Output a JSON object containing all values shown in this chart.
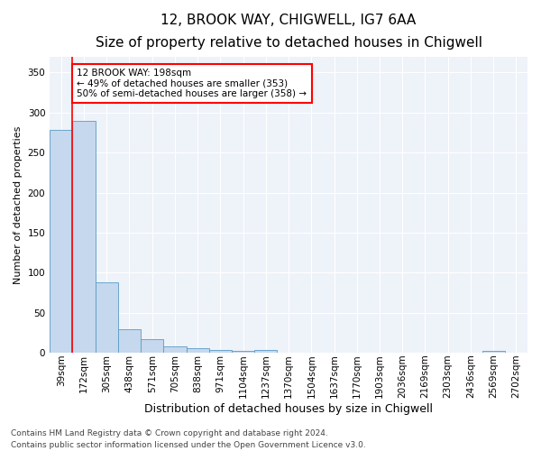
{
  "title1": "12, BROOK WAY, CHIGWELL, IG7 6AA",
  "title2": "Size of property relative to detached houses in Chigwell",
  "xlabel": "Distribution of detached houses by size in Chigwell",
  "ylabel": "Number of detached properties",
  "bin_labels": [
    "39sqm",
    "172sqm",
    "305sqm",
    "438sqm",
    "571sqm",
    "705sqm",
    "838sqm",
    "971sqm",
    "1104sqm",
    "1237sqm",
    "1370sqm",
    "1504sqm",
    "1637sqm",
    "1770sqm",
    "1903sqm",
    "2036sqm",
    "2169sqm",
    "2303sqm",
    "2436sqm",
    "2569sqm",
    "2702sqm"
  ],
  "bar_heights": [
    278,
    290,
    88,
    30,
    17,
    8,
    6,
    4,
    3,
    4,
    0,
    0,
    0,
    0,
    0,
    0,
    0,
    0,
    0,
    3,
    0
  ],
  "bar_color": "#c5d8ed",
  "bar_edge_color": "#5a9cc5",
  "annotation_text_line1": "12 BROOK WAY: 198sqm",
  "annotation_text_line2": "← 49% of detached houses are smaller (353)",
  "annotation_text_line3": "50% of semi-detached houses are larger (358) →",
  "annotation_box_color": "white",
  "annotation_box_edge_color": "red",
  "red_line_color": "red",
  "ylim": [
    0,
    370
  ],
  "yticks": [
    0,
    50,
    100,
    150,
    200,
    250,
    300,
    350
  ],
  "footer1": "Contains HM Land Registry data © Crown copyright and database right 2024.",
  "footer2": "Contains public sector information licensed under the Open Government Licence v3.0.",
  "background_color": "#eef2f9",
  "grid_color": "white",
  "title1_fontsize": 11,
  "title2_fontsize": 9.5,
  "xlabel_fontsize": 9,
  "ylabel_fontsize": 8,
  "tick_fontsize": 7.5,
  "footer_fontsize": 6.5,
  "annot_fontsize": 7.5
}
